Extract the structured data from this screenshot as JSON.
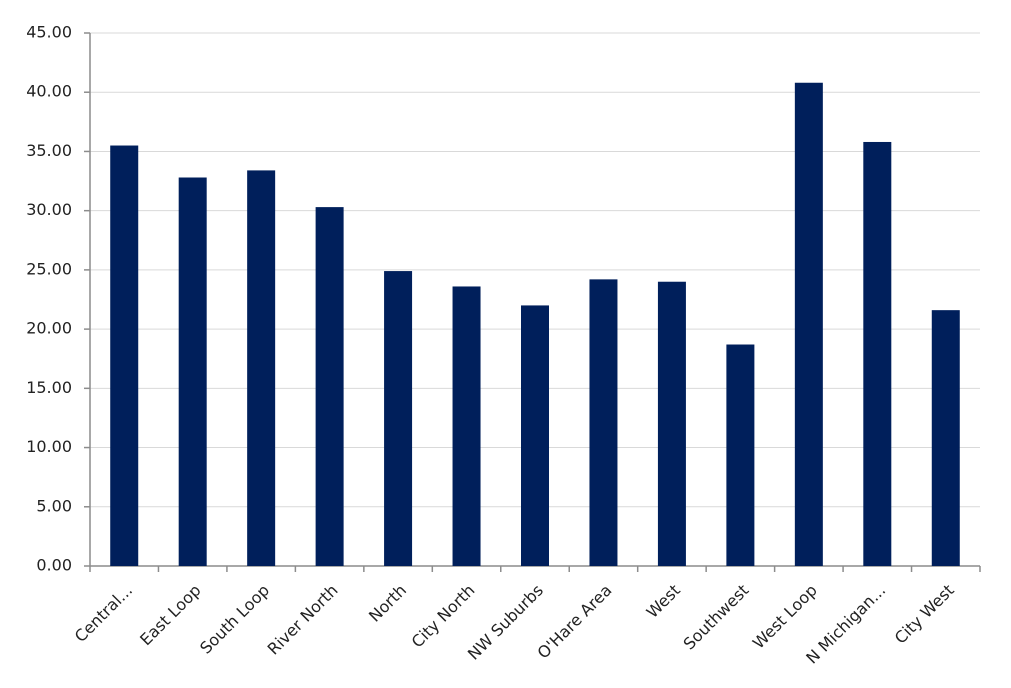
{
  "chart_data": {
    "type": "bar",
    "categories": [
      "Central...",
      "East Loop",
      "South Loop",
      "River North",
      "North",
      "City North",
      "NW Suburbs",
      "O'Hare Area",
      "West",
      "Southwest",
      "West Loop",
      "N Michigan...",
      "City West"
    ],
    "values": [
      35.5,
      32.8,
      33.4,
      30.3,
      24.9,
      23.6,
      22.0,
      24.2,
      24.0,
      18.7,
      40.8,
      35.8,
      21.6
    ],
    "color": "#001f5b",
    "ylim": [
      0,
      45
    ],
    "yticks": [
      {
        "value": 0,
        "label": "0.00"
      },
      {
        "value": 5,
        "label": "5.00"
      },
      {
        "value": 10,
        "label": "10.00"
      },
      {
        "value": 15,
        "label": "15.00"
      },
      {
        "value": 20,
        "label": "20.00"
      },
      {
        "value": 25,
        "label": "25.00"
      },
      {
        "value": 30,
        "label": "30.00"
      },
      {
        "value": 35,
        "label": "35.00"
      },
      {
        "value": 40,
        "label": "40.00"
      },
      {
        "value": 45,
        "label": "45.00"
      }
    ],
    "grid": true
  }
}
